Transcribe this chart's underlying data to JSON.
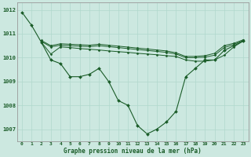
{
  "background_color": "#cce8e0",
  "grid_color": "#b0d8cc",
  "line_color": "#1a5c28",
  "xlabel": "Graphe pression niveau de la mer (hPa)",
  "ylim": [
    1006.5,
    1012.3
  ],
  "xlim": [
    -0.5,
    23.5
  ],
  "yticks": [
    1007,
    1008,
    1009,
    1010,
    1011,
    1012
  ],
  "xticks": [
    0,
    1,
    2,
    3,
    4,
    5,
    6,
    7,
    8,
    9,
    10,
    11,
    12,
    13,
    14,
    15,
    16,
    17,
    18,
    19,
    20,
    21,
    22,
    23
  ],
  "line_main": {
    "x": [
      0,
      1,
      2,
      3,
      4,
      5,
      6,
      7,
      8,
      9,
      10,
      11,
      12,
      13,
      14,
      15,
      16,
      17,
      18,
      19,
      20,
      21,
      22,
      23
    ],
    "y": [
      1011.9,
      1011.35,
      1010.65,
      1009.9,
      1009.75,
      1009.2,
      1009.2,
      1009.3,
      1009.55,
      1009.0,
      1008.2,
      1008.0,
      1007.15,
      1006.8,
      1007.0,
      1007.3,
      1007.75,
      1009.2,
      1009.55,
      1009.9,
      1009.9,
      1010.3,
      1010.5,
      1010.7
    ]
  },
  "line_a": {
    "x": [
      2,
      3,
      4,
      5,
      6,
      7,
      8,
      9,
      10,
      11,
      12,
      13,
      14,
      15,
      16,
      17,
      18,
      19,
      20,
      21,
      22,
      23
    ],
    "y": [
      1010.65,
      1010.15,
      1010.45,
      1010.42,
      1010.38,
      1010.35,
      1010.32,
      1010.28,
      1010.25,
      1010.22,
      1010.18,
      1010.15,
      1010.12,
      1010.08,
      1010.05,
      1009.9,
      1009.85,
      1009.85,
      1009.9,
      1010.1,
      1010.45,
      1010.7
    ]
  },
  "line_b": {
    "x": [
      2,
      3,
      4,
      5,
      6,
      7,
      8,
      9,
      10,
      11,
      12,
      13,
      14,
      15,
      16,
      17,
      18,
      19,
      20,
      21,
      22,
      23
    ],
    "y": [
      1010.68,
      1010.45,
      1010.52,
      1010.5,
      1010.48,
      1010.46,
      1010.5,
      1010.46,
      1010.42,
      1010.38,
      1010.34,
      1010.3,
      1010.26,
      1010.22,
      1010.15,
      1010.0,
      1010.0,
      1010.02,
      1010.1,
      1010.42,
      1010.55,
      1010.72
    ]
  },
  "line_c": {
    "x": [
      2,
      3,
      4,
      5,
      6,
      7,
      8,
      9,
      10,
      11,
      12,
      13,
      14,
      15,
      16,
      17,
      18,
      19,
      20,
      21,
      22,
      23
    ],
    "y": [
      1010.72,
      1010.5,
      1010.58,
      1010.56,
      1010.54,
      1010.52,
      1010.56,
      1010.52,
      1010.48,
      1010.44,
      1010.4,
      1010.36,
      1010.32,
      1010.28,
      1010.2,
      1010.05,
      1010.05,
      1010.08,
      1010.18,
      1010.5,
      1010.6,
      1010.75
    ]
  }
}
